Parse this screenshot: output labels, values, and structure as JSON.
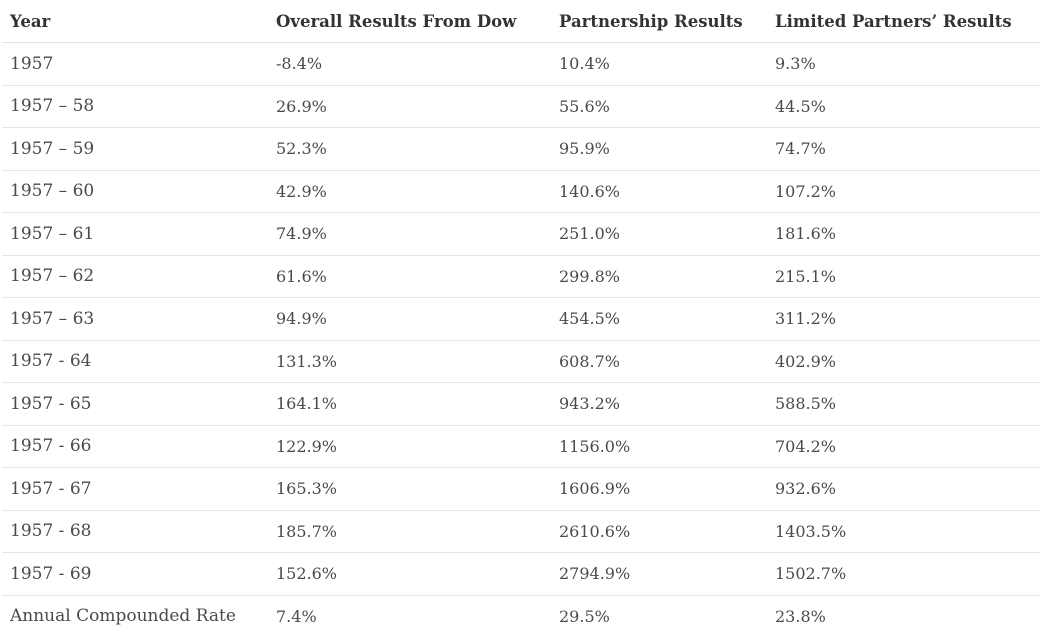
{
  "table": {
    "headers": [
      "Year",
      "Overall Results From Dow",
      "Partnership Results",
      "Limited Partners’ Results"
    ],
    "rows": [
      [
        "1957",
        "-8.4%",
        "10.4%",
        "9.3%"
      ],
      [
        "1957 – 58",
        "26.9%",
        "55.6%",
        "44.5%"
      ],
      [
        "1957 – 59",
        "52.3%",
        "95.9%",
        "74.7%"
      ],
      [
        "1957 – 60",
        "42.9%",
        "140.6%",
        "107.2%"
      ],
      [
        "1957 – 61",
        "74.9%",
        "251.0%",
        "181.6%"
      ],
      [
        "1957 – 62",
        "61.6%",
        "299.8%",
        "215.1%"
      ],
      [
        "1957 – 63",
        "94.9%",
        "454.5%",
        "311.2%"
      ],
      [
        "1957 - 64",
        "131.3%",
        "608.7%",
        "402.9%"
      ],
      [
        "1957 - 65",
        "164.1%",
        "943.2%",
        "588.5%"
      ],
      [
        "1957 - 66",
        "122.9%",
        "1156.0%",
        "704.2%"
      ],
      [
        "1957 - 67",
        "165.3%",
        "1606.9%",
        "932.6%"
      ],
      [
        "1957 - 68",
        "185.7%",
        "2610.6%",
        "1403.5%"
      ],
      [
        "1957 - 69",
        "152.6%",
        "2794.9%",
        "1502.7%"
      ],
      [
        "Annual Compounded Rate",
        "7.4%",
        "29.5%",
        "23.8%"
      ]
    ]
  }
}
